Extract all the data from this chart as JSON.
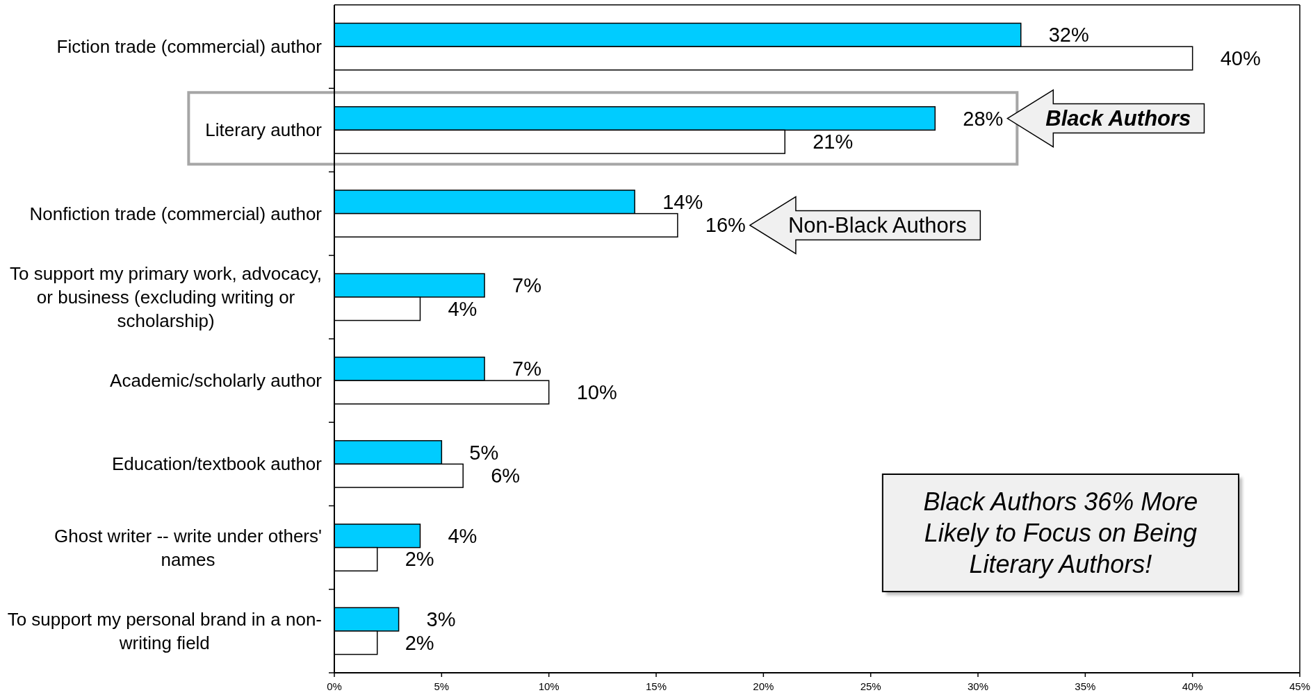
{
  "chart_data": {
    "type": "bar",
    "orientation": "horizontal",
    "categories": [
      "Fiction trade (commercial) author",
      "Literary author",
      "Nonfiction trade (commercial) author",
      "To support my primary work, advocacy, or business (excluding writing or scholarship)",
      "Academic/scholarly author",
      "Education/textbook author",
      "Ghost writer -- write under others' names",
      "To support my personal brand in a non-writing field"
    ],
    "series": [
      {
        "name": "Black Authors",
        "color": "#00ccff",
        "values": [
          32,
          28,
          14,
          7,
          7,
          5,
          4,
          3
        ],
        "value_labels": [
          "32%",
          "28%",
          "14%",
          "7%",
          "7%",
          "5%",
          "4%",
          "3%"
        ]
      },
      {
        "name": "Non-Black Authors",
        "color": "#ffffff",
        "values": [
          40,
          21,
          16,
          4,
          10,
          6,
          2,
          2
        ],
        "value_labels": [
          "40%",
          "21%",
          "16%",
          "4%",
          "10%",
          "6%",
          "2%",
          "2%"
        ]
      }
    ],
    "xlim": [
      0,
      45
    ],
    "xticks": [
      {
        "value": 0,
        "label": "0%"
      },
      {
        "value": 5,
        "label": "5%"
      },
      {
        "value": 10,
        "label": "10%"
      },
      {
        "value": 15,
        "label": "15%"
      },
      {
        "value": 20,
        "label": "20%"
      },
      {
        "value": 25,
        "label": "25%"
      },
      {
        "value": 30,
        "label": "30%"
      },
      {
        "value": 35,
        "label": "35%"
      },
      {
        "value": 40,
        "label": "40%"
      },
      {
        "value": 45,
        "label": "45%"
      }
    ],
    "annotations": [
      "Black Authors 36% More Likely to Focus on Being Literary Authors!"
    ]
  }
}
